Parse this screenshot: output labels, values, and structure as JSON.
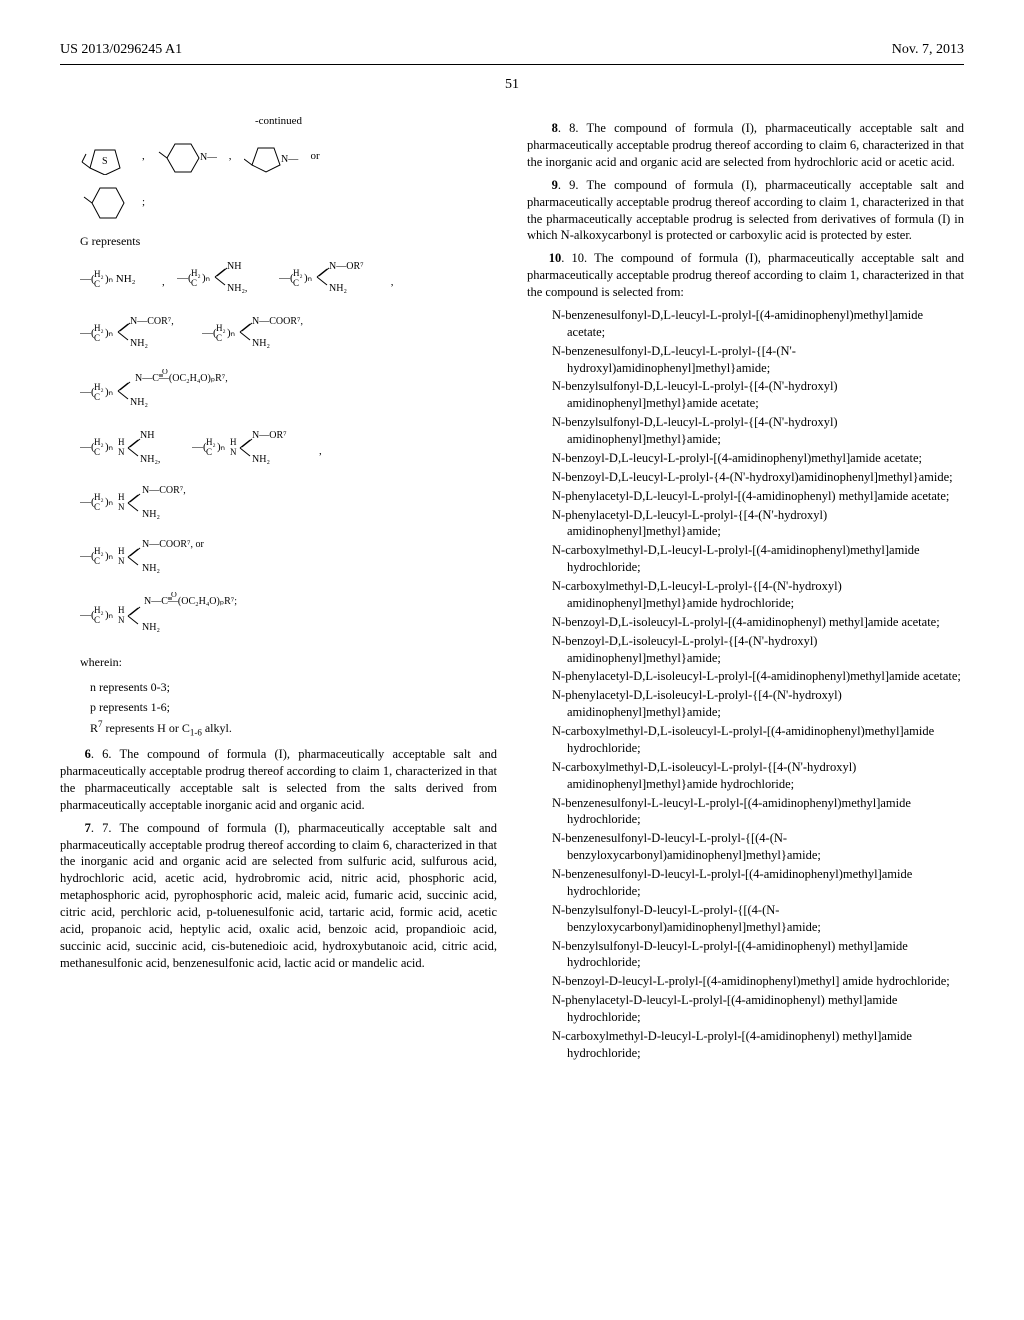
{
  "header": {
    "patent_number": "US 2013/0296245 A1",
    "date": "Nov. 7, 2013"
  },
  "page_number": "51",
  "left_column": {
    "continued_label": "-continued",
    "g_represents": "G represents",
    "wherein_label": "wherein:",
    "n_represents": "n represents 0-3;",
    "p_represents": "p represents 1-6;",
    "r7_represents_prefix": "R",
    "r7_represents_sup": "7",
    "r7_represents_suffix": " represents H or C",
    "r7_sub": "1-6",
    "r7_end": " alkyl.",
    "claim6": "6. The compound of formula (I), pharmaceutically acceptable salt and pharmaceutically acceptable prodrug thereof according to claim 1, characterized in that the pharmaceutically acceptable salt is selected from the salts derived from pharmaceutically acceptable inorganic acid and organic acid.",
    "claim7": "7. The compound of formula (I), pharmaceutically acceptable salt and pharmaceutically acceptable prodrug thereof according to claim 6, characterized in that the inorganic acid and organic acid are selected from sulfuric acid, sulfurous acid, hydrochloric acid, acetic acid, hydrobromic acid, nitric acid, phosphoric acid, metaphosphoric acid, pyrophosphoric acid, maleic acid, fumaric acid, succinic acid, citric acid, perchloric acid, p-toluenesulfonic acid, tartaric acid, formic acid, acetic acid, propanoic acid, heptylic acid, oxalic acid, benzoic acid, propandioic acid, succinic acid, succinic acid, cis-butenedioic acid, hydroxybutanoic acid, citric acid, methanesulfonic acid, benzenesulfonic acid, lactic acid or mandelic acid."
  },
  "right_column": {
    "claim8": "8. The compound of formula (I), pharmaceutically acceptable salt and pharmaceutically acceptable prodrug thereof according to claim 6, characterized in that the inorganic acid and organic acid are selected from hydrochloric acid or acetic acid.",
    "claim9": "9. The compound of formula (I), pharmaceutically acceptable salt and pharmaceutically acceptable prodrug thereof according to claim 1, characterized in that the pharmaceutically acceptable prodrug is selected from derivatives of formula (I) in which N-alkoxycarbonyl is protected or carboxylic acid is protected by ester.",
    "claim10": "10. The compound of formula (I), pharmaceutically acceptable salt and pharmaceutically acceptable prodrug thereof according to claim 1, characterized in that the compound is selected from:",
    "compounds": [
      "N-benzenesulfonyl-D,L-leucyl-L-prolyl-[(4-amidinophenyl)methyl]amide acetate;",
      "N-benzenesulfonyl-D,L-leucyl-L-prolyl-{[4-(N'-hydroxyl)amidinophenyl]methyl}amide;",
      "N-benzylsulfonyl-D,L-leucyl-L-prolyl-{[4-(N'-hydroxyl) amidinophenyl]methyl}amide acetate;",
      "N-benzylsulfonyl-D,L-leucyl-L-prolyl-{[4-(N'-hydroxyl) amidinophenyl]methyl}amide;",
      "N-benzoyl-D,L-leucyl-L-prolyl-[(4-amidinophenyl)methyl]amide acetate;",
      "N-benzoyl-D,L-leucyl-L-prolyl-{4-(N'-hydroxyl)amidinophenyl]methyl}amide;",
      "N-phenylacetyl-D,L-leucyl-L-prolyl-[(4-amidinophenyl) methyl]amide acetate;",
      "N-phenylacetyl-D,L-leucyl-L-prolyl-{[4-(N'-hydroxyl) amidinophenyl]methyl}amide;",
      "N-carboxylmethyl-D,L-leucyl-L-prolyl-[(4-amidinophenyl)methyl]amide hydrochloride;",
      "N-carboxylmethyl-D,L-leucyl-L-prolyl-{[4-(N'-hydroxyl) amidinophenyl]methyl}amide hydrochloride;",
      "N-benzoyl-D,L-isoleucyl-L-prolyl-[(4-amidinophenyl) methyl]amide acetate;",
      "N-benzoyl-D,L-isoleucyl-L-prolyl-{[4-(N'-hydroxyl) amidinophenyl]methyl}amide;",
      "N-phenylacetyl-D,L-isoleucyl-L-prolyl-[(4-amidinophenyl)methyl]amide acetate;",
      "N-phenylacetyl-D,L-isoleucyl-L-prolyl-{[4-(N'-hydroxyl) amidinophenyl]methyl}amide;",
      "N-carboxylmethyl-D,L-isoleucyl-L-prolyl-[(4-amidinophenyl)methyl]amide hydrochloride;",
      "N-carboxylmethyl-D,L-isoleucyl-L-prolyl-{[4-(N'-hydroxyl) amidinophenyl]methyl}amide hydrochloride;",
      "N-benzenesulfonyl-L-leucyl-L-prolyl-[(4-amidinophenyl)methyl]amide hydrochloride;",
      "N-benzenesulfonyl-D-leucyl-L-prolyl-{[(4-(N-benzyloxycarbonyl)amidinophenyl]methyl}amide;",
      "N-benzenesulfonyl-D-leucyl-L-prolyl-[(4-amidinophenyl)methyl]amide hydrochloride;",
      "N-benzylsulfonyl-D-leucyl-L-prolyl-{[(4-(N-benzyloxycarbonyl)amidinophenyl]methyl}amide;",
      "N-benzylsulfonyl-D-leucyl-L-prolyl-[(4-amidinophenyl) methyl]amide hydrochloride;",
      "N-benzoyl-D-leucyl-L-prolyl-[(4-amidinophenyl)methyl] amide hydrochloride;",
      "N-phenylacetyl-D-leucyl-L-prolyl-[(4-amidinophenyl) methyl]amide hydrochloride;",
      "N-carboxylmethyl-D-leucyl-L-prolyl-[(4-amidinophenyl) methyl]amide hydrochloride;"
    ]
  },
  "chem": {
    "continued": "-continued",
    "ring_s": "⬠S",
    "ring_n1": "⬡N—",
    "ring_n2": "⬠N—",
    "or_text": " or",
    "ring_hex": "⬡",
    "semicolon": ";",
    "ch2_frag": "(H₂C)ₙ",
    "nh2": "NH₂",
    "nh": "NH",
    "n_or7": "N—OR⁷",
    "n_cor7": "N—COR⁷",
    "n_coor7": "N—COOR⁷",
    "oc_frag": "N—C(O)—(OC₂H₄O)ₚR⁷",
    "hn": "HN",
    "comma": ","
  },
  "styling": {
    "body_bg": "#ffffff",
    "text_color": "#000000",
    "font_family": "Times New Roman",
    "body_font_size": 12.5,
    "header_font_size": 14,
    "chem_font_size": 11
  }
}
